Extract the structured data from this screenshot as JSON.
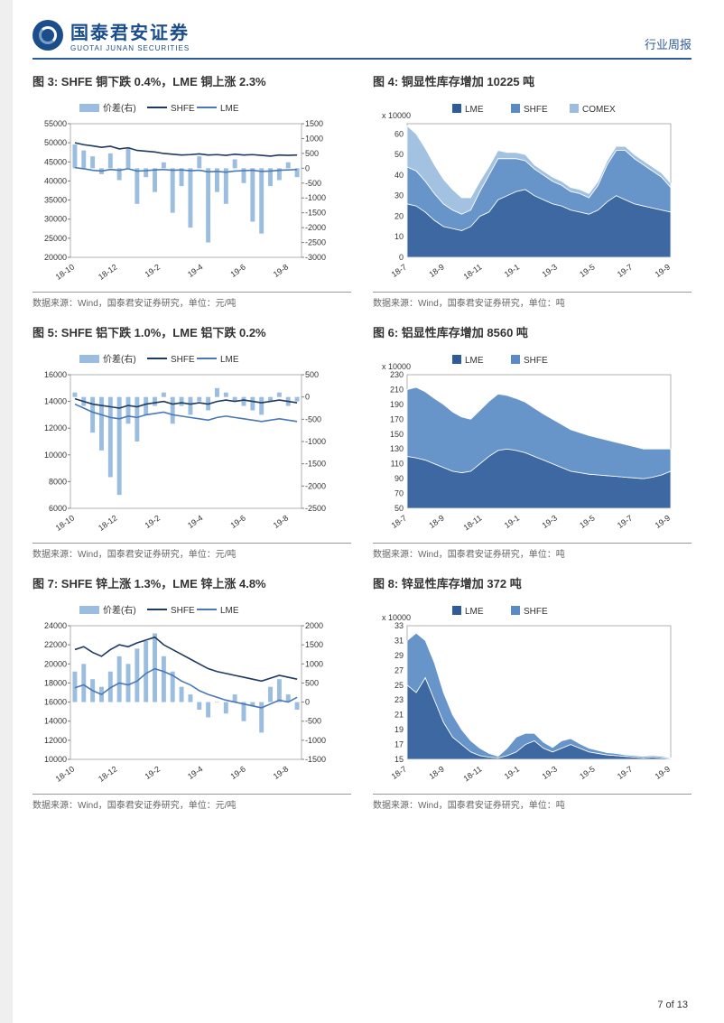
{
  "header": {
    "company_cn": "国泰君安证券",
    "company_en": "GUOTAI JUNAN SECURITIES",
    "doc_type": "行业周报"
  },
  "page_footer": "7 of 13",
  "colors": {
    "brand": "#1a4d8a",
    "axis": "#808080",
    "grid": "#d0d0d0",
    "dark_line": "#1f3a5f",
    "mid_line": "#4a78b5",
    "bar_light": "#9bbde0",
    "area1": "#2e5b9a",
    "area2": "#5a8bc4",
    "area3": "#9bbde0",
    "title_sep": "#999"
  },
  "charts": [
    {
      "id": "fig3",
      "title": "图 3:  SHFE 铜下跌 0.4%，LME 铜上涨 2.3%",
      "source": "数据来源：Wind，国泰君安证券研究，单位：元/吨",
      "type": "line-bar-dual",
      "legend": [
        {
          "label": "价差(右)",
          "color": "#9bbde0",
          "kind": "bar"
        },
        {
          "label": "SHFE",
          "color": "#1f3a5f",
          "kind": "line"
        },
        {
          "label": "LME",
          "color": "#4a78b5",
          "kind": "line"
        }
      ],
      "xticks": [
        "18-10",
        "18-12",
        "19-2",
        "19-4",
        "19-6",
        "19-8"
      ],
      "yl": {
        "min": 20000,
        "max": 55000,
        "step": 5000
      },
      "yr": {
        "min": -3000,
        "max": 1500,
        "step": 500
      },
      "shfe": [
        50000,
        49500,
        49200,
        48800,
        49100,
        48400,
        48700,
        48000,
        47800,
        47600,
        47200,
        47000,
        46800,
        46900,
        47100,
        46800,
        46900,
        46700,
        47000,
        46800,
        46900,
        46700,
        46500,
        46800,
        46700,
        46800
      ],
      "lme": [
        43500,
        43200,
        42800,
        42600,
        43000,
        42800,
        43200,
        42600,
        42700,
        42900,
        43000,
        42800,
        42900,
        42700,
        42800,
        42400,
        42500,
        42300,
        42600,
        42700,
        42800,
        42500,
        42600,
        42800,
        42900,
        43000
      ],
      "spread": [
        800,
        600,
        400,
        -200,
        500,
        -400,
        700,
        -1200,
        -300,
        -800,
        200,
        -1500,
        -600,
        -2000,
        400,
        -2500,
        -800,
        -1200,
        300,
        -500,
        -1800,
        -2200,
        -600,
        -400,
        200,
        -300
      ]
    },
    {
      "id": "fig4",
      "title": "图 4:  铜显性库存增加 10225 吨",
      "source": "数据来源：Wind，国泰君安证券研究，单位：吨",
      "type": "stacked-area",
      "legend": [
        {
          "label": "LME",
          "color": "#2e5b9a"
        },
        {
          "label": "SHFE",
          "color": "#5a8bc4"
        },
        {
          "label": "COMEX",
          "color": "#9bbde0"
        }
      ],
      "xticks": [
        "18-7",
        "18-9",
        "18-11",
        "19-1",
        "19-3",
        "19-5",
        "19-7",
        "19-9"
      ],
      "yl_label": "x 10000",
      "yl": {
        "min": 0,
        "max": 65,
        "step": 10
      },
      "lme": [
        26,
        25,
        22,
        18,
        15,
        14,
        13,
        15,
        20,
        22,
        28,
        30,
        32,
        33,
        30,
        28,
        26,
        25,
        23,
        22,
        21,
        23,
        27,
        30,
        28,
        26,
        25,
        24,
        23,
        22
      ],
      "shfe": [
        18,
        17,
        15,
        13,
        11,
        9,
        8,
        8,
        12,
        18,
        20,
        18,
        16,
        14,
        13,
        12,
        11,
        10,
        9,
        9,
        8,
        12,
        18,
        22,
        24,
        22,
        20,
        18,
        16,
        12
      ],
      "comex": [
        20,
        18,
        16,
        14,
        12,
        10,
        8,
        6,
        5,
        4,
        4,
        3,
        3,
        3,
        2,
        2,
        2,
        2,
        2,
        2,
        2,
        2,
        2,
        2,
        2,
        2,
        2,
        2,
        2,
        2
      ]
    },
    {
      "id": "fig5",
      "title": "图 5:  SHFE 铝下跌 1.0%，LME 铝下跌 0.2%",
      "source": "数据来源：Wind，国泰君安证券研究，单位：元/吨",
      "type": "line-bar-dual",
      "legend": [
        {
          "label": "价差(右)",
          "color": "#9bbde0",
          "kind": "bar"
        },
        {
          "label": "SHFE",
          "color": "#1f3a5f",
          "kind": "line"
        },
        {
          "label": "LME",
          "color": "#4a78b5",
          "kind": "line"
        }
      ],
      "xticks": [
        "18-10",
        "18-12",
        "19-2",
        "19-4",
        "19-6",
        "19-8"
      ],
      "yl": {
        "min": 6000,
        "max": 16000,
        "step": 2000
      },
      "yr": {
        "min": -2500,
        "max": 500,
        "step": 500
      },
      "shfe": [
        14200,
        14000,
        13800,
        13700,
        13600,
        13500,
        13700,
        13600,
        13800,
        13900,
        14000,
        13800,
        13900,
        13800,
        13900,
        13800,
        14000,
        14100,
        14000,
        14100,
        14000,
        13900,
        14000,
        14100,
        14000,
        13900
      ],
      "lme": [
        13800,
        13500,
        13200,
        13000,
        12800,
        12700,
        12900,
        12800,
        13000,
        13100,
        13200,
        13000,
        12900,
        12800,
        12700,
        12600,
        12800,
        12900,
        12800,
        12700,
        12600,
        12500,
        12600,
        12700,
        12600,
        12500
      ],
      "spread": [
        100,
        -200,
        -800,
        -1200,
        -1800,
        -2200,
        -600,
        -1000,
        -400,
        -200,
        100,
        -600,
        -200,
        -400,
        -100,
        -300,
        200,
        100,
        -100,
        -200,
        -300,
        -400,
        -100,
        100,
        -200,
        -100
      ]
    },
    {
      "id": "fig6",
      "title": "图 6:  铝显性库存增加 8560 吨",
      "source": "数据来源：Wind，国泰君安证券研究，单位：吨",
      "type": "stacked-area",
      "legend": [
        {
          "label": "LME",
          "color": "#2e5b9a"
        },
        {
          "label": "SHFE",
          "color": "#5a8bc4"
        }
      ],
      "xticks": [
        "18-7",
        "18-9",
        "18-11",
        "19-1",
        "19-3",
        "19-5",
        "19-7",
        "19-9"
      ],
      "yl_label": "x 10000",
      "yl": {
        "min": 50,
        "max": 230,
        "step": 20
      },
      "lme": [
        120,
        118,
        115,
        110,
        105,
        100,
        98,
        100,
        110,
        120,
        128,
        130,
        128,
        125,
        120,
        115,
        110,
        105,
        100,
        98,
        96,
        95,
        94,
        93,
        92,
        91,
        90,
        92,
        95,
        100
      ],
      "shfe": [
        90,
        95,
        92,
        88,
        85,
        80,
        75,
        70,
        72,
        74,
        76,
        72,
        70,
        68,
        65,
        62,
        60,
        58,
        56,
        54,
        52,
        50,
        48,
        46,
        44,
        42,
        40,
        38,
        35,
        30
      ]
    },
    {
      "id": "fig7",
      "title": "图 7:  SHFE 锌上涨 1.3%，LME 锌上涨 4.8%",
      "source": "数据来源：Wind，国泰君安证券研究，单位：元/吨",
      "type": "line-bar-dual",
      "legend": [
        {
          "label": "价差(右)",
          "color": "#9bbde0",
          "kind": "bar"
        },
        {
          "label": "SHFE",
          "color": "#1f3a5f",
          "kind": "line"
        },
        {
          "label": "LME",
          "color": "#4a78b5",
          "kind": "line"
        }
      ],
      "xticks": [
        "18-10",
        "18-12",
        "19-2",
        "19-4",
        "19-6",
        "19-8"
      ],
      "yl": {
        "min": 10000,
        "max": 24000,
        "step": 2000
      },
      "yr": {
        "min": -1500,
        "max": 2000,
        "step": 500
      },
      "shfe": [
        21500,
        21800,
        21200,
        20800,
        21500,
        22000,
        21800,
        22200,
        22500,
        22800,
        22000,
        21500,
        21000,
        20500,
        20000,
        19500,
        19200,
        19000,
        18800,
        18600,
        18400,
        18200,
        18500,
        18800,
        18600,
        18400
      ],
      "lme": [
        17500,
        17800,
        17200,
        16800,
        17500,
        18000,
        17800,
        18200,
        19000,
        19500,
        19200,
        18800,
        18200,
        17800,
        17200,
        16800,
        16500,
        16200,
        16000,
        15800,
        15600,
        15400,
        15800,
        16200,
        16000,
        16500
      ],
      "spread": [
        800,
        1000,
        600,
        400,
        800,
        1200,
        1000,
        1400,
        1600,
        1800,
        1200,
        800,
        400,
        200,
        -200,
        -400,
        0,
        -300,
        200,
        -500,
        -100,
        -800,
        400,
        600,
        200,
        -200
      ]
    },
    {
      "id": "fig8",
      "title": "图 8:  锌显性库存增加 372 吨",
      "source": "数据来源：Wind，国泰君安证券研究，单位：吨",
      "type": "stacked-area",
      "legend": [
        {
          "label": "LME",
          "color": "#2e5b9a"
        },
        {
          "label": "SHFE",
          "color": "#5a8bc4"
        }
      ],
      "xticks": [
        "18-7",
        "18-9",
        "18-11",
        "19-1",
        "19-3",
        "19-5",
        "19-7",
        "19-9"
      ],
      "yl_label": "x 10000",
      "yl": {
        "min": 15,
        "max": 33,
        "step": 2
      },
      "lme": [
        25,
        24,
        26,
        23,
        20,
        18,
        17,
        16,
        15.5,
        15.3,
        15.2,
        15.5,
        16,
        17,
        17.5,
        16.5,
        16,
        16.5,
        17,
        16.5,
        16,
        15.8,
        15.6,
        15.5,
        15.4,
        15.3,
        15.2,
        15.3,
        15.2,
        15.1
      ],
      "shfe": [
        6,
        8,
        5,
        5,
        4,
        3,
        2,
        1.5,
        1,
        0.5,
        0.2,
        1,
        2,
        1.5,
        1,
        0.8,
        0.6,
        1,
        0.8,
        0.6,
        0.5,
        0.4,
        0.3,
        0.3,
        0.2,
        0.2,
        0.2,
        0.2,
        0.2,
        0.1
      ]
    }
  ]
}
